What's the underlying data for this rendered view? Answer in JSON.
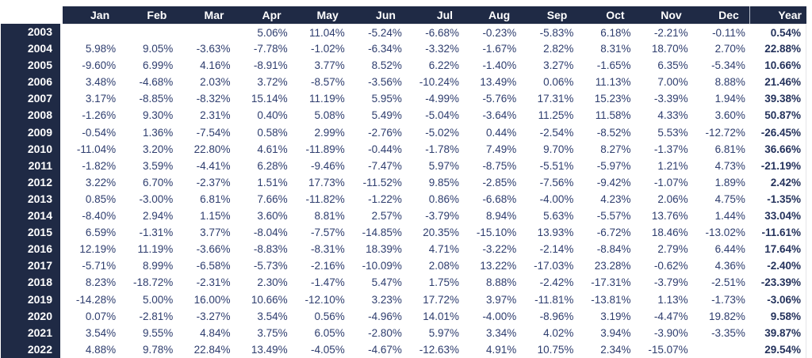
{
  "colors": {
    "header_bg": "#1f2a45",
    "header_text": "#ffffff",
    "body_text": "#2e3d6e",
    "total_text": "#24325c",
    "grid_line": "#ececec"
  },
  "chart_data": {
    "type": "table",
    "columns": [
      "Jan",
      "Feb",
      "Mar",
      "Apr",
      "May",
      "Jun",
      "Jul",
      "Aug",
      "Sep",
      "Oct",
      "Nov",
      "Dec",
      "Year"
    ],
    "rows": [
      {
        "year": "2003",
        "values": [
          "",
          "",
          "",
          "5.06%",
          "11.04%",
          "-5.24%",
          "-6.68%",
          "-0.23%",
          "-5.83%",
          "6.18%",
          "-2.21%",
          "-0.11%"
        ],
        "total": "0.54%"
      },
      {
        "year": "2004",
        "values": [
          "5.98%",
          "9.05%",
          "-3.63%",
          "-7.78%",
          "-1.02%",
          "-6.34%",
          "-3.32%",
          "-1.67%",
          "2.82%",
          "8.31%",
          "18.70%",
          "2.70%"
        ],
        "total": "22.88%"
      },
      {
        "year": "2005",
        "values": [
          "-9.60%",
          "6.99%",
          "4.16%",
          "-8.91%",
          "3.77%",
          "8.52%",
          "6.22%",
          "-1.40%",
          "3.27%",
          "-1.65%",
          "6.35%",
          "-5.34%"
        ],
        "total": "10.66%"
      },
      {
        "year": "2006",
        "values": [
          "3.48%",
          "-4.68%",
          "2.03%",
          "3.72%",
          "-8.57%",
          "-3.56%",
          "-10.24%",
          "13.49%",
          "0.06%",
          "11.13%",
          "7.00%",
          "8.88%"
        ],
        "total": "21.46%"
      },
      {
        "year": "2007",
        "values": [
          "3.17%",
          "-8.85%",
          "-8.32%",
          "15.14%",
          "11.19%",
          "5.95%",
          "-4.99%",
          "-5.76%",
          "17.31%",
          "15.23%",
          "-3.39%",
          "1.94%"
        ],
        "total": "39.38%"
      },
      {
        "year": "2008",
        "values": [
          "-1.26%",
          "9.30%",
          "2.31%",
          "0.40%",
          "5.08%",
          "5.49%",
          "-5.04%",
          "-3.64%",
          "11.25%",
          "11.58%",
          "4.33%",
          "3.60%"
        ],
        "total": "50.87%"
      },
      {
        "year": "2009",
        "values": [
          "-0.54%",
          "1.36%",
          "-7.54%",
          "0.58%",
          "2.99%",
          "-2.76%",
          "-5.02%",
          "0.44%",
          "-2.54%",
          "-8.52%",
          "5.53%",
          "-12.72%"
        ],
        "total": "-26.45%"
      },
      {
        "year": "2010",
        "values": [
          "-11.04%",
          "3.20%",
          "22.80%",
          "4.61%",
          "-11.89%",
          "-0.44%",
          "-1.78%",
          "7.49%",
          "9.70%",
          "8.27%",
          "-1.37%",
          "6.81%"
        ],
        "total": "36.66%"
      },
      {
        "year": "2011",
        "values": [
          "-1.82%",
          "3.59%",
          "-4.41%",
          "6.28%",
          "-9.46%",
          "-7.47%",
          "5.97%",
          "-8.75%",
          "-5.51%",
          "-5.97%",
          "1.21%",
          "4.73%"
        ],
        "total": "-21.19%"
      },
      {
        "year": "2012",
        "values": [
          "3.22%",
          "6.70%",
          "-2.37%",
          "1.51%",
          "17.73%",
          "-11.52%",
          "9.85%",
          "-2.85%",
          "-7.56%",
          "-9.42%",
          "-1.07%",
          "1.89%"
        ],
        "total": "2.42%"
      },
      {
        "year": "2013",
        "values": [
          "0.85%",
          "-3.00%",
          "6.81%",
          "7.66%",
          "-11.82%",
          "-1.22%",
          "0.86%",
          "-6.68%",
          "-4.00%",
          "4.23%",
          "2.06%",
          "4.75%"
        ],
        "total": "-1.35%"
      },
      {
        "year": "2014",
        "values": [
          "-8.40%",
          "2.94%",
          "1.15%",
          "3.60%",
          "8.81%",
          "2.57%",
          "-3.79%",
          "8.94%",
          "5.63%",
          "-5.57%",
          "13.76%",
          "1.44%"
        ],
        "total": "33.04%"
      },
      {
        "year": "2015",
        "values": [
          "6.59%",
          "-1.31%",
          "3.77%",
          "-8.04%",
          "-7.57%",
          "-14.85%",
          "20.35%",
          "-15.10%",
          "13.93%",
          "-6.72%",
          "18.46%",
          "-13.02%"
        ],
        "total": "-11.61%"
      },
      {
        "year": "2016",
        "values": [
          "12.19%",
          "11.19%",
          "-3.66%",
          "-8.83%",
          "-8.31%",
          "18.39%",
          "4.71%",
          "-3.22%",
          "-2.14%",
          "-8.84%",
          "2.79%",
          "6.44%"
        ],
        "total": "17.64%"
      },
      {
        "year": "2017",
        "values": [
          "-5.71%",
          "8.99%",
          "-6.58%",
          "-5.73%",
          "-2.16%",
          "-10.09%",
          "2.08%",
          "13.22%",
          "-17.03%",
          "23.28%",
          "-0.62%",
          "4.36%"
        ],
        "total": "-2.40%"
      },
      {
        "year": "2018",
        "values": [
          "8.23%",
          "-18.72%",
          "-2.31%",
          "2.30%",
          "-1.47%",
          "5.47%",
          "1.75%",
          "8.88%",
          "-2.42%",
          "-17.31%",
          "-3.79%",
          "-2.51%"
        ],
        "total": "-23.39%"
      },
      {
        "year": "2019",
        "values": [
          "-14.28%",
          "5.00%",
          "16.00%",
          "10.66%",
          "-12.10%",
          "3.23%",
          "17.72%",
          "3.97%",
          "-11.81%",
          "-13.81%",
          "1.13%",
          "-1.73%"
        ],
        "total": "-3.06%"
      },
      {
        "year": "2020",
        "values": [
          "0.07%",
          "-2.81%",
          "-3.27%",
          "3.54%",
          "0.56%",
          "-4.96%",
          "14.01%",
          "-4.00%",
          "-8.96%",
          "3.19%",
          "-4.47%",
          "19.82%"
        ],
        "total": "9.58%"
      },
      {
        "year": "2021",
        "values": [
          "3.54%",
          "9.55%",
          "4.84%",
          "3.75%",
          "6.05%",
          "-2.80%",
          "5.97%",
          "3.34%",
          "4.02%",
          "3.94%",
          "-3.90%",
          "-3.35%"
        ],
        "total": "39.87%"
      },
      {
        "year": "2022",
        "values": [
          "4.88%",
          "9.78%",
          "22.84%",
          "13.49%",
          "-4.05%",
          "-4.67%",
          "-12.63%",
          "4.91%",
          "10.75%",
          "2.34%",
          "-15.07%",
          ""
        ],
        "total": "29.54%"
      }
    ]
  }
}
